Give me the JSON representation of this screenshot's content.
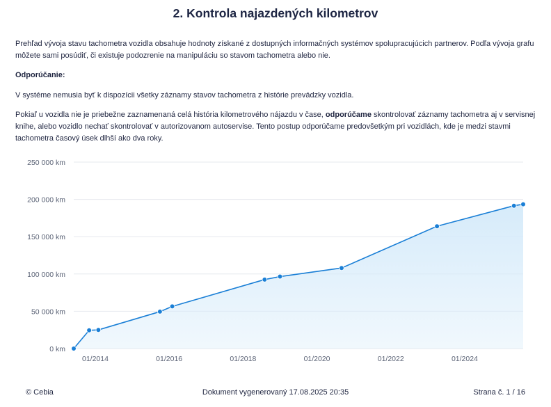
{
  "header": {
    "title": "2. Kontrola najazdených kilometrov"
  },
  "intro": {
    "paragraph1": "Prehľad vývoja stavu tachometra vozidla obsahuje hodnoty získané z dostupných informačných systémov spolupracujúcich partnerov. Podľa vývoja grafu môžete sami posúdiť, či existuje podozrenie na manipuláciu so stavom tachometra alebo nie.",
    "recommendation_heading": "Odporúčanie:",
    "paragraph2": "V systéme nemusia byť k dispozícii všetky záznamy stavov tachometra z histórie prevádzky vozidla.",
    "paragraph3_before": "Pokiaľ u vozidla nie je priebežne zaznamenaná celá história kilometrového nájazdu v čase, ",
    "paragraph3_bold": "odporúčame",
    "paragraph3_after": " skontrolovať záznamy tachometra aj v servisnej knihe, alebo vozidlo nechať skontrolovať v autorizovanom autoservise. Tento postup odporúčame predovšetkým pri vozidlách, kde je medzi stavmi tachometra časový úsek dlhší ako dva roky."
  },
  "chart_data": {
    "type": "area",
    "series": [
      {
        "x": [
          "2013-06",
          "2013-11",
          "2014-02",
          "2015-10",
          "2016-02",
          "2018-08",
          "2019-01",
          "2020-09",
          "2023-04",
          "2025-05",
          "2025-08"
        ],
        "values": [
          0,
          24500,
          25000,
          49500,
          56500,
          92500,
          96500,
          108000,
          164000,
          191500,
          193500
        ]
      }
    ],
    "x_ticks": [
      "01/2014",
      "01/2016",
      "01/2018",
      "01/2020",
      "01/2022",
      "01/2024"
    ],
    "y_ticks": [
      "0 km",
      "50 000 km",
      "100 000 km",
      "150 000 km",
      "200 000 km",
      "250 000 km"
    ],
    "ylim": [
      0,
      250000
    ],
    "xlim": [
      "2013-06",
      "2025-08"
    ],
    "grid": true,
    "colors": {
      "line": "#1a7fd6",
      "fill": "#d6ebfa",
      "grid": "#e6e8ee"
    }
  },
  "footer": {
    "left": "© Cebia",
    "center": "Dokument vygenerovaný 17.08.2025 20:35",
    "right": "Strana č. 1 / 16"
  }
}
